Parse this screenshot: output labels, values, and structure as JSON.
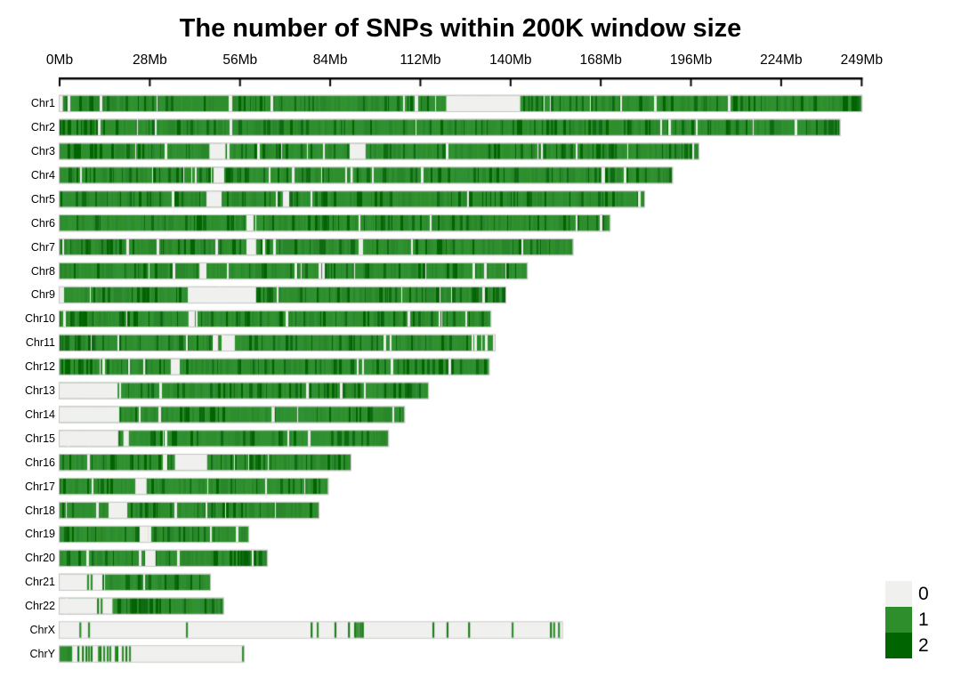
{
  "chart_data": {
    "type": "heatmap",
    "subtype": "chromosome-density-plot",
    "title": "The number of SNPs within 200K window size",
    "window_size": "200K",
    "xlabel": "",
    "ylabel": "",
    "x_axis": {
      "unit": "Mb",
      "max_value": 249,
      "tick_values": [
        0,
        28,
        56,
        84,
        112,
        140,
        168,
        196,
        224,
        249
      ],
      "tick_labels": [
        "0Mb",
        "28Mb",
        "56Mb",
        "84Mb",
        "112Mb",
        "140Mb",
        "168Mb",
        "196Mb",
        "224Mb",
        "249Mb"
      ]
    },
    "value_scale": [
      0,
      1,
      2
    ],
    "value_meaning": "SNP count class per 200K window (0 = none, 1 = medium, 2 = high)",
    "legend": {
      "position": "bottom-right",
      "entries": [
        {
          "label": "0",
          "color": "#f0f0ee"
        },
        {
          "label": "1",
          "color": "#2e8e2b"
        },
        {
          "label": "2",
          "color": "#006400"
        }
      ]
    },
    "colors": {
      "value0": "#f0f0ee",
      "value1": "#2e8e2b",
      "value1_variants": [
        "#2e8e2b",
        "#309230",
        "#2a862a",
        "#2f8f33"
      ],
      "value2": "#006400",
      "value2_alt": "#0f6b12",
      "thin_gap": "#eceeea",
      "bar_border": "#c6c6c6",
      "axis": "#000000"
    },
    "chromosomes": [
      {
        "name": "Chr1",
        "length_mb": 249.0,
        "base": 1,
        "gaps": [
          [
            0,
            1
          ],
          [
            120,
            143
          ]
        ],
        "lines": [],
        "dark_regions": [
          [
            243,
            247.5
          ]
        ],
        "seed": 1
      },
      {
        "name": "Chr2",
        "length_mb": 242.2,
        "base": 1,
        "gaps": [],
        "lines": [],
        "dark_regions": [
          [
            0,
            10
          ]
        ],
        "seed": 2
      },
      {
        "name": "Chr3",
        "length_mb": 198.3,
        "base": 1,
        "gaps": [
          [
            46.5,
            51.5
          ],
          [
            90,
            95
          ]
        ],
        "lines": [],
        "dark_regions": [],
        "seed": 3
      },
      {
        "name": "Chr4",
        "length_mb": 190.2,
        "base": 1,
        "gaps": [
          [
            47.8,
            51.1
          ],
          [
            90.3,
            91
          ]
        ],
        "lines": [],
        "dark_regions": [],
        "seed": 4
      },
      {
        "name": "Chr5",
        "length_mb": 181.5,
        "base": 1,
        "gaps": [
          [
            45.6,
            50.3
          ],
          [
            69.3,
            71.3
          ]
        ],
        "lines": [],
        "dark_regions": [],
        "seed": 5
      },
      {
        "name": "Chr6",
        "length_mb": 170.8,
        "base": 1,
        "gaps": [
          [
            58,
            60.2
          ]
        ],
        "lines": [],
        "dark_regions": [],
        "seed": 6
      },
      {
        "name": "Chr7",
        "length_mb": 159.3,
        "base": 1,
        "gaps": [
          [
            58,
            61
          ]
        ],
        "lines": [],
        "dark_regions": [
          [
            61.5,
            64
          ]
        ],
        "seed": 7
      },
      {
        "name": "Chr8",
        "length_mb": 145.1,
        "base": 1,
        "gaps": [
          [
            43.4,
            45.6
          ]
        ],
        "lines": [],
        "dark_regions": [],
        "seed": 8
      },
      {
        "name": "Chr9",
        "length_mb": 138.4,
        "base": 1,
        "gaps": [
          [
            39.8,
            61
          ]
        ],
        "lines": [],
        "dark_regions": [
          [
            61,
            66
          ]
        ],
        "seed": 9
      },
      {
        "name": "Chr10",
        "length_mb": 133.8,
        "base": 1,
        "gaps": [
          [
            40,
            42
          ]
        ],
        "lines": [],
        "dark_regions": [],
        "seed": 10
      },
      {
        "name": "Chr11",
        "length_mb": 135.1,
        "base": 1,
        "gaps": [
          [
            47.5,
            49.2
          ],
          [
            50.5,
            54.4
          ]
        ],
        "lines": [],
        "dark_regions": [
          [
            0,
            8
          ]
        ],
        "seed": 11
      },
      {
        "name": "Chr12",
        "length_mb": 133.3,
        "base": 1,
        "gaps": [
          [
            34.5,
            37.3
          ]
        ],
        "lines": [],
        "dark_regions": [],
        "seed": 12
      },
      {
        "name": "Chr13",
        "length_mb": 114.4,
        "base": 1,
        "gaps": [
          [
            0,
            18
          ]
        ],
        "lines": [],
        "dark_regions": [],
        "seed": 13
      },
      {
        "name": "Chr14",
        "length_mb": 107.0,
        "base": 1,
        "gaps": [
          [
            0,
            18.5
          ],
          [
            65.8,
            66.8
          ]
        ],
        "lines": [],
        "dark_regions": [],
        "seed": 14
      },
      {
        "name": "Chr15",
        "length_mb": 102.0,
        "base": 1,
        "gaps": [
          [
            0,
            18.2
          ],
          [
            19.8,
            21.5
          ]
        ],
        "lines": [
          18.6,
          19.3
        ],
        "dark_regions": [],
        "seed": 15
      },
      {
        "name": "Chr16",
        "length_mb": 90.3,
        "base": 1,
        "gaps": [
          [
            35.8,
            45.8
          ]
        ],
        "lines": [],
        "dark_regions": [
          [
            32,
            35.5
          ]
        ],
        "seed": 16
      },
      {
        "name": "Chr17",
        "length_mb": 83.3,
        "base": 1,
        "gaps": [
          [
            23.5,
            27
          ]
        ],
        "lines": [],
        "dark_regions": [],
        "seed": 17
      },
      {
        "name": "Chr18",
        "length_mb": 80.4,
        "base": 1,
        "gaps": [
          [
            15.2,
            21
          ]
        ],
        "lines": [],
        "dark_regions": [],
        "seed": 18
      },
      {
        "name": "Chr19",
        "length_mb": 58.6,
        "base": 1,
        "gaps": [
          [
            24.8,
            27.6
          ]
        ],
        "lines": [],
        "dark_regions": [],
        "seed": 19
      },
      {
        "name": "Chr20",
        "length_mb": 64.4,
        "base": 1,
        "gaps": [
          [
            26.5,
            29.8
          ]
        ],
        "lines": [],
        "dark_regions": [
          [
            56.5,
            61
          ]
        ],
        "seed": 20
      },
      {
        "name": "Chr21",
        "length_mb": 46.7,
        "base": 1,
        "gaps": [
          [
            0,
            13.3
          ]
        ],
        "lines": [
          8.8,
          9.9
        ],
        "dark_regions": [],
        "seed": 21
      },
      {
        "name": "Chr22",
        "length_mb": 50.8,
        "base": 1,
        "gaps": [
          [
            0,
            16.4
          ]
        ],
        "lines": [
          11.9,
          13
        ],
        "dark_regions": [
          [
            20,
            34
          ]
        ],
        "seed": 22
      },
      {
        "name": "ChrX",
        "length_mb": 156.0,
        "base": 0,
        "gaps": [],
        "lines": [
          6.4,
          9.1,
          39.5,
          78.2,
          80.1,
          85.6,
          89.8,
          91.7,
          92.3,
          92.9,
          93.5,
          94.1,
          116,
          120.4,
          127.1,
          140.6,
          152.5,
          153.5,
          155
        ],
        "dark_regions": [],
        "seed": 23
      },
      {
        "name": "ChrY",
        "length_mb": 57.2,
        "base": 0,
        "green_segments": [
          [
            0,
            3.9
          ]
        ],
        "gaps": [],
        "lines": [
          5.8,
          7.2,
          8.3,
          9.1,
          9.9,
          12.2,
          12.7,
          13.8,
          14.9,
          15.7,
          17.4,
          17.9,
          19.6,
          20.7,
          21.8,
          56.9
        ],
        "dark_regions": [],
        "seed": 24
      }
    ]
  }
}
